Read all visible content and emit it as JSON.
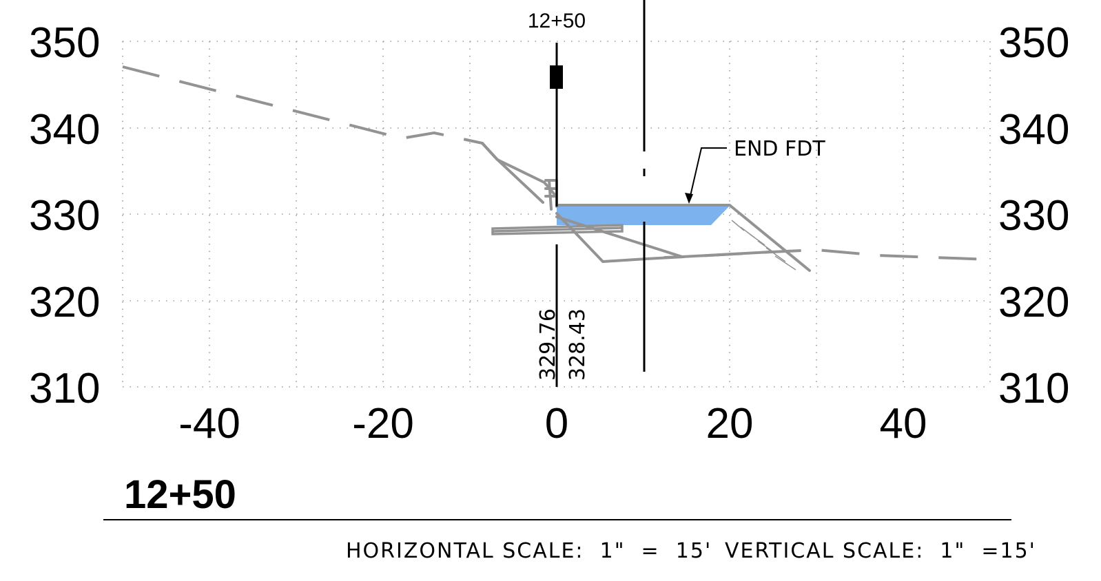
{
  "drawing": {
    "station_top_label": "12+50",
    "station_label": "12+50",
    "annotation": "END FDT",
    "elevation_labels": [
      "329.76",
      "328.43"
    ],
    "horizontal_scale": "HORIZONTAL SCALE:  1\"  =  15'",
    "vertical_scale": "VERTICAL SCALE:  1\"  =15'",
    "y_ticks": [
      "350",
      "340",
      "330",
      "320",
      "310"
    ],
    "x_ticks": [
      "-40",
      "-20",
      "0",
      "20",
      "40"
    ],
    "fill_color": "#7cb2ee",
    "ground_color": "#939393"
  }
}
